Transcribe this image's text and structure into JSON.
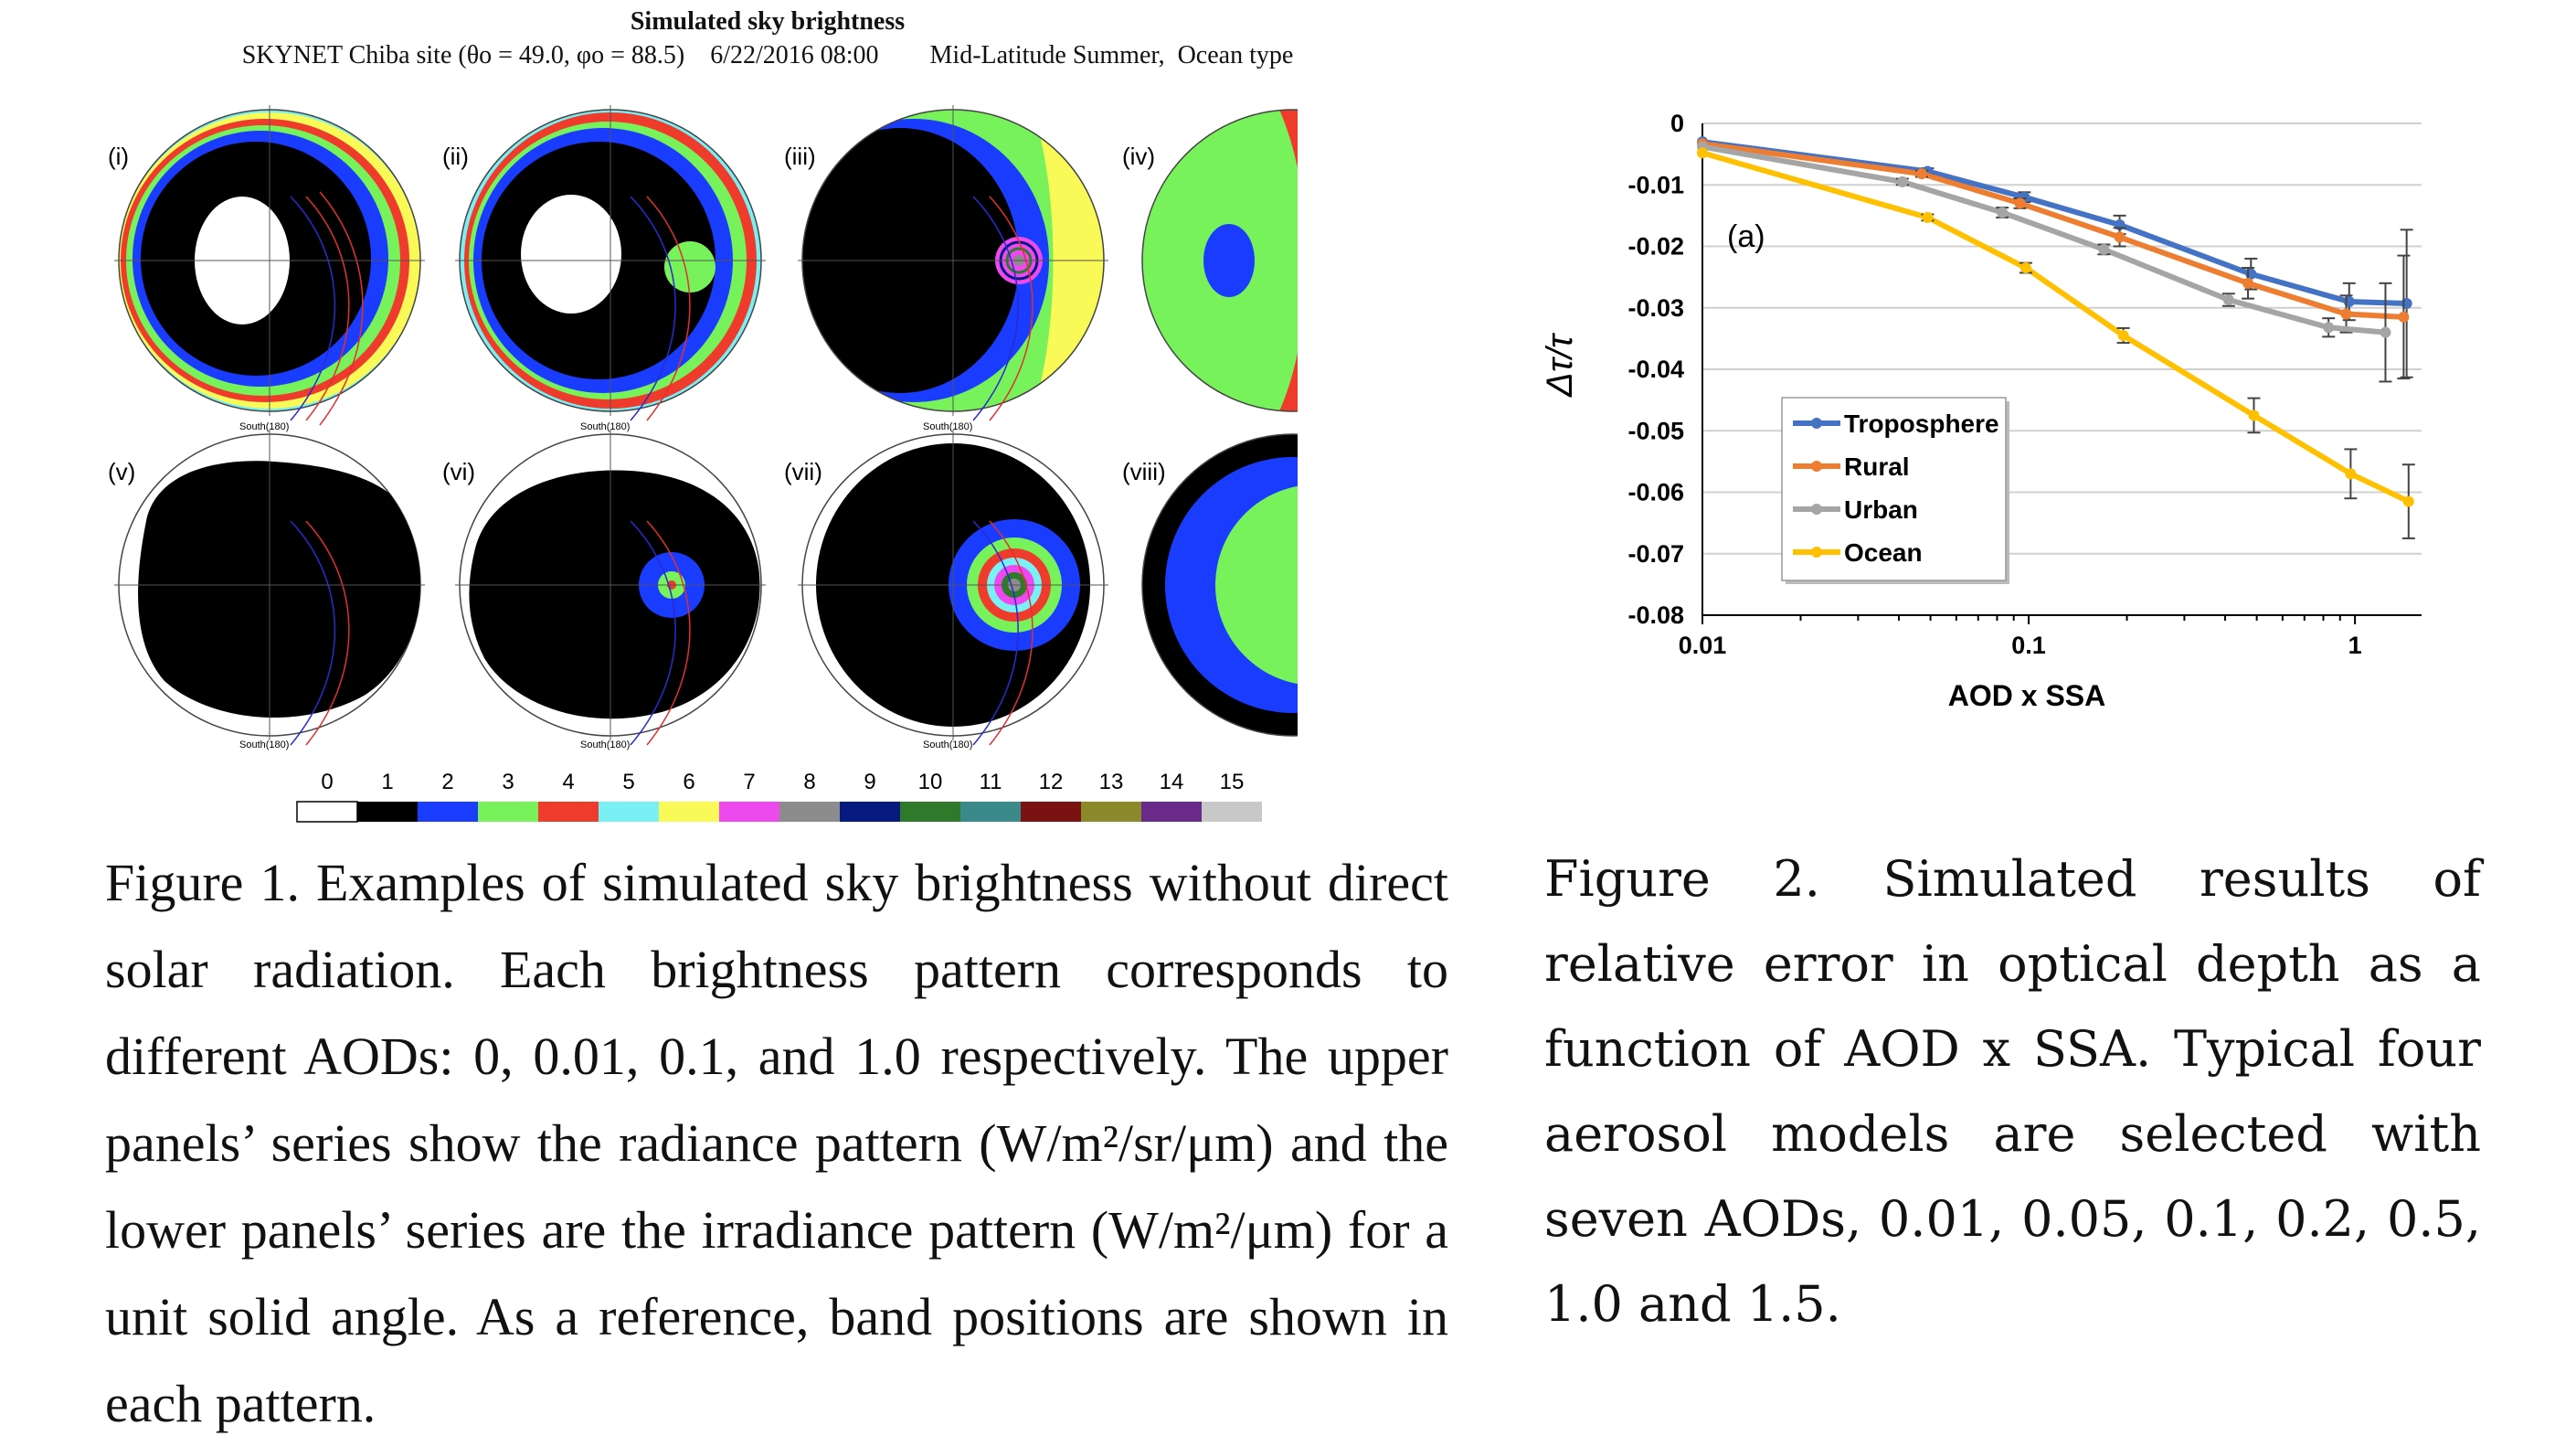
{
  "figure1": {
    "title": "Simulated sky brightness",
    "subtitle": "SKYNET Chiba site (θo = 49.0, φo = 88.5)    6/22/2016 08:00        Mid-Latitude Summer,  Ocean type",
    "panels": [
      "(i)",
      "(ii)",
      "(iii)",
      "(iv)",
      "(v)",
      "(vi)",
      "(vii)",
      "(viii)"
    ],
    "south_label": "South(180)",
    "colorbar": {
      "labels": [
        "0",
        "1",
        "2",
        "3",
        "4",
        "5",
        "6",
        "7",
        "8",
        "9",
        "10",
        "11",
        "12",
        "13",
        "14",
        "15"
      ],
      "colors": [
        "#ffffff",
        "#000000",
        "#1a3cff",
        "#77f25a",
        "#ee3b2c",
        "#7af0f4",
        "#f9f957",
        "#ee49ee",
        "#8c8c8c",
        "#061a80",
        "#2e7a2a",
        "#3a8a8c",
        "#7a1212",
        "#8a8a2a",
        "#6a2a8a",
        "#c8c8c8"
      ]
    },
    "caption": "Figure 1. Examples of simulated sky brightness without direct solar radiation. Each brightness pattern corresponds to different AODs: 0, 0.01, 0.1, and 1.0 respectively. The upper panels’ series show the radiance pattern (W/m²/sr/μm) and the lower panels’ series are the irradiance pattern (W/m²/μm) for a unit solid angle. As a reference, band positions are shown in each pattern."
  },
  "figure2": {
    "caption": "Figure 2. Simulated results of relative error in optical depth as a function of AOD x SSA. Typical four aerosol models are selected with seven AODs, 0.01, 0.05, 0.1, 0.2, 0.5, 1.0 and 1.5."
  },
  "chart_data": {
    "type": "line",
    "title": "",
    "panel_label": "(a)",
    "xlabel": "AOD x SSA",
    "ylabel": "Δτ/τ",
    "xscale": "log",
    "xlim": [
      0.01,
      1.6
    ],
    "ylim": [
      -0.08,
      0
    ],
    "x_ticks": [
      "0.01",
      "0.1",
      "1"
    ],
    "y_ticks": [
      "0",
      "-0.01",
      "-0.02",
      "-0.03",
      "-0.04",
      "-0.05",
      "-0.06",
      "-0.07",
      "-0.08"
    ],
    "legend_position": "bottom-left",
    "grid": "horizontal",
    "series": [
      {
        "name": "Troposphere",
        "color": "#4472c4",
        "x": [
          0.01,
          0.049,
          0.097,
          0.19,
          0.48,
          0.96,
          1.44
        ],
        "y": [
          -0.003,
          -0.0078,
          -0.012,
          -0.0165,
          -0.0245,
          -0.029,
          -0.0293
        ],
        "err": [
          0,
          0.0005,
          0.0008,
          0.0015,
          0.0025,
          0.003,
          0.012
        ]
      },
      {
        "name": "Rural",
        "color": "#ed7d31",
        "x": [
          0.01,
          0.047,
          0.094,
          0.19,
          0.47,
          0.94,
          1.41
        ],
        "y": [
          -0.0033,
          -0.0082,
          -0.013,
          -0.0185,
          -0.026,
          -0.031,
          -0.0315
        ],
        "err": [
          0,
          0.0005,
          0.0008,
          0.0015,
          0.0025,
          0.003,
          0.01
        ]
      },
      {
        "name": "Urban",
        "color": "#a5a5a5",
        "x": [
          0.01,
          0.041,
          0.083,
          0.17,
          0.41,
          0.83,
          1.24
        ],
        "y": [
          -0.0038,
          -0.0095,
          -0.0145,
          -0.0205,
          -0.0287,
          -0.0332,
          -0.034
        ],
        "err": [
          0,
          0.0005,
          0.0008,
          0.0008,
          0.001,
          0.0015,
          0.008
        ]
      },
      {
        "name": "Ocean",
        "color": "#ffc000",
        "x": [
          0.01,
          0.049,
          0.098,
          0.195,
          0.49,
          0.97,
          1.46
        ],
        "y": [
          -0.0048,
          -0.0153,
          -0.0235,
          -0.0345,
          -0.0475,
          -0.057,
          -0.0615
        ],
        "err": [
          0,
          0.0005,
          0.0008,
          0.0012,
          0.0028,
          0.004,
          0.006
        ]
      }
    ]
  }
}
